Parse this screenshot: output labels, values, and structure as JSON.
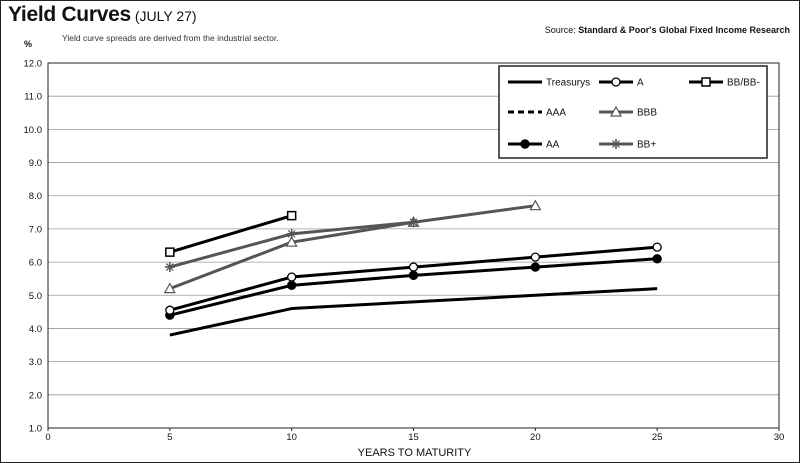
{
  "header": {
    "title": "Yield Curves",
    "title_date": "(JULY 27)",
    "subtitle": "Yield curve spreads are derived from the industrial sector.",
    "source_prefix": "Source:",
    "source_name": "Standard & Poor's Global Fixed Income Research",
    "y_unit": "%"
  },
  "chart_data": {
    "type": "line",
    "title": "Yield Curves (JULY 27)",
    "xlabel": "YEARS TO MATURITY",
    "ylabel": "%",
    "xlim": [
      0,
      30
    ],
    "ylim": [
      1.0,
      12.0
    ],
    "x_ticks": [
      0,
      5,
      10,
      15,
      20,
      25,
      30
    ],
    "x_tick_labels": [
      "0",
      "5",
      "10",
      "15",
      "20",
      "25",
      "30"
    ],
    "y_ticks": [
      1.0,
      2.0,
      3.0,
      4.0,
      5.0,
      6.0,
      7.0,
      8.0,
      9.0,
      10.0,
      11.0,
      12.0
    ],
    "y_tick_labels": [
      "1.0",
      "2.0",
      "3.0",
      "4.0",
      "5.0",
      "6.0",
      "7.0",
      "8.0",
      "9.0",
      "10.0",
      "11.0",
      "12.0"
    ],
    "grid": "horizontal",
    "legend_position": "top-right",
    "series": [
      {
        "name": "Treasurys",
        "color": "#000000",
        "dash": "solid",
        "marker": "none",
        "x": [
          5,
          10,
          15,
          20,
          25
        ],
        "y": [
          3.8,
          4.6,
          4.8,
          5.0,
          5.2
        ]
      },
      {
        "name": "AAA",
        "color": "#000000",
        "dash": "dashed",
        "marker": "none",
        "x": [],
        "y": []
      },
      {
        "name": "AA",
        "color": "#000000",
        "dash": "solid",
        "marker": "filled-circle",
        "x": [
          5,
          10,
          15,
          20,
          25
        ],
        "y": [
          4.4,
          5.3,
          5.6,
          5.85,
          6.1
        ]
      },
      {
        "name": "A",
        "color": "#000000",
        "dash": "solid",
        "marker": "open-circle",
        "x": [
          5,
          10,
          15,
          20,
          25
        ],
        "y": [
          4.55,
          5.55,
          5.85,
          6.15,
          6.45
        ]
      },
      {
        "name": "BBB",
        "color": "#555555",
        "dash": "solid",
        "marker": "open-triangle",
        "x": [
          5,
          10,
          15,
          20
        ],
        "y": [
          5.2,
          6.6,
          7.2,
          7.7
        ]
      },
      {
        "name": "BB+",
        "color": "#555555",
        "dash": "solid",
        "marker": "star",
        "x": [
          5,
          10,
          15
        ],
        "y": [
          5.85,
          6.85,
          7.2
        ]
      },
      {
        "name": "BB/BB-",
        "color": "#000000",
        "dash": "solid",
        "marker": "open-square",
        "x": [
          5,
          10
        ],
        "y": [
          6.3,
          7.4
        ]
      }
    ]
  }
}
